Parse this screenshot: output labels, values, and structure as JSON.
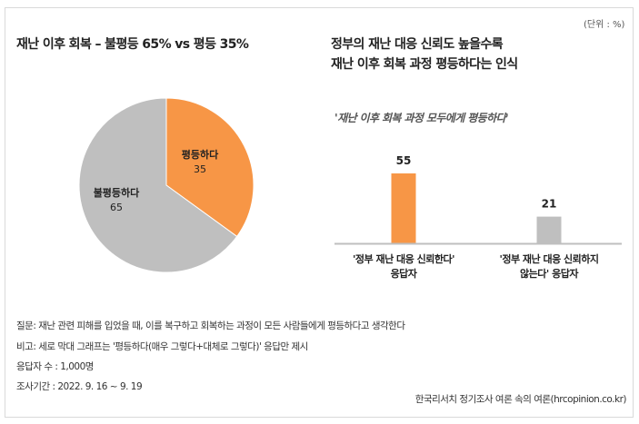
{
  "unit_label": "(단위 : %)",
  "chart_data": [
    {
      "type": "pie",
      "title": "재난 이후 회복 – 불평등 65% vs 평등 35%",
      "slices": [
        {
          "label": "평등하다",
          "value": 35,
          "color": "#F79646"
        },
        {
          "label": "불평등하다",
          "value": 65,
          "color": "#BFBFBF"
        }
      ]
    },
    {
      "type": "bar",
      "title_line1": "정부의 재난 대응 신뢰도 높을수록",
      "title_line2": "재난 이후 회복 과정 평등하다는 인식",
      "subtitle": "'재난 이후 회복 과정 모두에게 평등하다'",
      "categories": [
        {
          "line1": "'정부 재난 대응 신뢰한다'",
          "line2": "응답자"
        },
        {
          "line1": "'정부 재난 대응 신뢰하지",
          "line2": "않는다' 응답자"
        }
      ],
      "values": [
        55,
        21
      ],
      "colors": [
        "#F79646",
        "#BFBFBF"
      ],
      "ylim": [
        0,
        100
      ]
    }
  ],
  "notes": {
    "question": "질문:  재난 관련 피해를 입었을 때, 이를 복구하고 회복하는 과정이 모든 사람들에게 평등하다고 생각한다",
    "remark": "비고: 세로 막대 그래프는 '평등하다(매우 그렇다+대체로 그렇다)' 응답만 제시",
    "respondents": "응답자 수 : 1,000명",
    "period": "조사기간 : 2022. 9. 16 ~ 9. 19",
    "source": "한국리서치 정기조사 여론 속의 여론(hrcopinion.co.kr)"
  }
}
